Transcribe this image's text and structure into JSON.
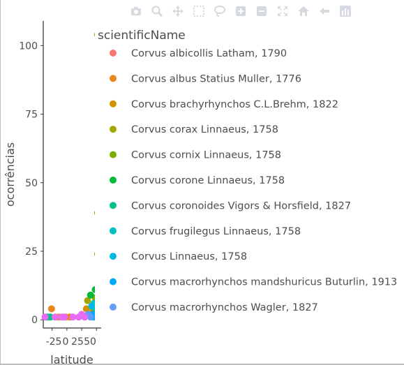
{
  "modebar": {
    "buttons": [
      {
        "name": "camera-icon",
        "icon": "camera"
      },
      {
        "name": "zoom-icon",
        "icon": "zoom"
      },
      {
        "name": "pan-icon",
        "icon": "pan"
      },
      {
        "name": "box-select-icon",
        "icon": "box-select"
      },
      {
        "name": "lasso-select-icon",
        "icon": "lasso"
      },
      {
        "name": "zoom-in-icon",
        "icon": "zoom-in"
      },
      {
        "name": "zoom-out-icon",
        "icon": "zoom-out"
      },
      {
        "name": "autoscale-icon",
        "icon": "autoscale"
      },
      {
        "name": "reset-axes-icon",
        "icon": "home"
      },
      {
        "name": "spike-lines-icon",
        "icon": "spikelines"
      },
      {
        "name": "plotly-logo-icon",
        "icon": "plotly-logo"
      }
    ],
    "icon_color": "#d5dae0"
  },
  "chart_data": {
    "type": "scatter",
    "xlabel": "latitude",
    "ylabel": "ocorrências",
    "x_ticks": [
      "-25",
      "0",
      "25",
      "50"
    ],
    "y_ticks": [
      0,
      25,
      50,
      75,
      100
    ],
    "ylim": [
      -3,
      109
    ],
    "xlim": [
      -40,
      58
    ],
    "grid": false,
    "legend": {
      "title": "scientificName",
      "placement": "right",
      "entries": [
        {
          "name": "Corvus albicollis Latham, 1790",
          "color": "#F8766D"
        },
        {
          "name": "Corvus albus Statius Muller, 1776",
          "color": "#E7861B"
        },
        {
          "name": "Corvus brachyrhynchos C.L.Brehm, 1822",
          "color": "#D39200"
        },
        {
          "name": "Corvus corax Linnaeus, 1758",
          "color": "#A3A500"
        },
        {
          "name": "Corvus cornix Linnaeus, 1758",
          "color": "#7CAE00"
        },
        {
          "name": "Corvus corone Linnaeus, 1758",
          "color": "#00BA38"
        },
        {
          "name": "Corvus coronoides Vigors & Horsfield, 1827",
          "color": "#00C08B"
        },
        {
          "name": "Corvus frugilegus Linnaeus, 1758",
          "color": "#00BFC4"
        },
        {
          "name": "Corvus Linnaeus, 1758",
          "color": "#00B9E3"
        },
        {
          "name": "Corvus macrorhynchos mandshuricus Buturlin, 1913",
          "color": "#00A9FF"
        },
        {
          "name": "Corvus macrorhynchos Wagler, 1827",
          "color": "#619CFF"
        }
      ]
    },
    "series": [
      {
        "name": "Corvus albicollis Latham, 1790",
        "points": [
          [
            -34,
            1
          ],
          [
            -30,
            1
          ]
        ]
      },
      {
        "name": "Corvus albus Statius Muller, 1776",
        "points": [
          [
            -26,
            4
          ],
          [
            -14,
            1
          ],
          [
            -2,
            1
          ],
          [
            5,
            1
          ]
        ]
      },
      {
        "name": "Corvus brachyrhynchos C.L.Brehm, 1822",
        "points": [
          [
            33,
            4
          ],
          [
            38,
            2
          ],
          [
            42,
            1
          ]
        ]
      },
      {
        "name": "Corvus corax Linnaeus, 1758",
        "points": [
          [
            35,
            7
          ],
          [
            44,
            3
          ],
          [
            52,
            24
          ],
          [
            55,
            5
          ]
        ]
      },
      {
        "name": "Corvus cornix Linnaeus, 1758",
        "points": [
          [
            52,
            104
          ],
          [
            52,
            39
          ],
          [
            55,
            17
          ],
          [
            48,
            8
          ]
        ]
      },
      {
        "name": "Corvus corone Linnaeus, 1758",
        "points": [
          [
            40,
            9
          ],
          [
            48,
            11
          ],
          [
            51,
            6
          ]
        ]
      },
      {
        "name": "Corvus coronoides Vigors & Horsfield, 1827",
        "points": [
          [
            -33,
            1
          ],
          [
            -28,
            1
          ]
        ]
      },
      {
        "name": "Corvus frugilegus Linnaeus, 1758",
        "points": [
          [
            46,
            6
          ],
          [
            50,
            4
          ],
          [
            53,
            3
          ]
        ]
      },
      {
        "name": "Corvus Linnaeus, 1758",
        "points": [
          [
            42,
            5
          ],
          [
            45,
            2
          ],
          [
            48,
            1
          ]
        ]
      },
      {
        "name": "Corvus macrorhynchos mandshuricus Buturlin, 1913",
        "points": [
          [
            44,
            2
          ],
          [
            46,
            1
          ]
        ]
      },
      {
        "name": "Corvus macrorhynchos Wagler, 1827",
        "points": [
          [
            36,
            2
          ],
          [
            40,
            1
          ],
          [
            30,
            1
          ]
        ]
      },
      {
        "name": "",
        "color": "#E76BF3",
        "points": [
          [
            -37,
            1
          ],
          [
            -20,
            1
          ],
          [
            -9,
            1
          ],
          [
            -4,
            1
          ],
          [
            10,
            1
          ],
          [
            20,
            1
          ],
          [
            25,
            2
          ],
          [
            30,
            1
          ]
        ]
      }
    ]
  }
}
